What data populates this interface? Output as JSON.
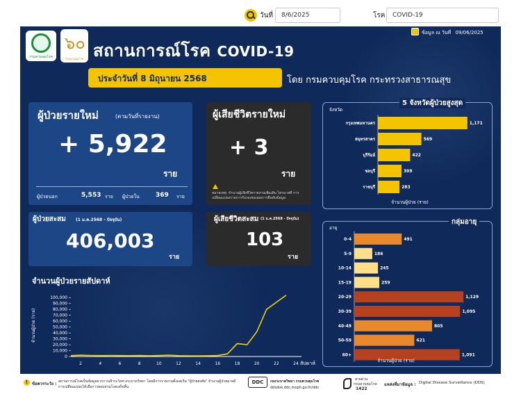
{
  "filters": {
    "date_label": "วันที่",
    "date_value": "8/6/2025",
    "disease_label": "โรค",
    "disease_value": "COVID-19"
  },
  "header": {
    "logo1_text": "กรมควบคุมโรค",
    "logo2_glyph": "๖๐",
    "logo2_text": "กรมควบคุมโรค",
    "title_th": "สถานการณ์โรค",
    "title_en": "COVID-19",
    "updated_label": "ข้อมูล ณ วันที่",
    "updated_date": "09/06/2025",
    "date_pill": "ประจำวันที่  8 มิถุนายน 2568",
    "by_text": "โดย กรมควบคุมโรค กระทรวงสาธารณสุข"
  },
  "new_cases": {
    "title": "ผู้ป่วยรายใหม่",
    "subtitle": "(ตามวันที่รายงาน)",
    "value": "+ 5,922",
    "unit": "ราย",
    "outpatient_label": "ผู้ป่วยนอก",
    "outpatient_value": "5,553",
    "inpatient_label": "ผู้ป่วยใน",
    "inpatient_value": "369",
    "row_unit": "ราย"
  },
  "new_deaths": {
    "title": "ผู้เสียชีวิตรายใหม่",
    "value": "+ 3",
    "unit": "ราย",
    "note": "หมายเหตุ: จำนวนผู้เสียชีวิตรายงานเพิ่มเติม ไตรมาสที่ การเปลี่ยนแปลงรายการรับรองของผลการยืนยันข้อมูล"
  },
  "cumulative": {
    "title": "ผู้ป่วยสะสม",
    "subtitle": "(1 ม.ค.2568 - ปัจจุบัน)",
    "value": "406,003",
    "unit": "ราย"
  },
  "cumulative_deaths": {
    "title": "ผู้เสียชีวิตสะสม",
    "subtitle": "(1 ม.ค.2568 - ปัจจุบัน)",
    "value": "103",
    "unit": "ราย"
  },
  "colors": {
    "bar_yellow": "#f5c400",
    "bar_light": "#ffe08a",
    "bar_orange": "#e8892b",
    "bar_red": "#b5411f",
    "line": "#f5d000"
  },
  "chart_data": [
    {
      "type": "line",
      "title": "จำนวนผู้ป่วยรายสัปดาห์",
      "xlabel": "สัปดาห์",
      "ylabel": "จำนวนผู้ป่วย (ราย)",
      "x": [
        1,
        2,
        3,
        4,
        5,
        6,
        7,
        8,
        9,
        10,
        11,
        12,
        13,
        14,
        15,
        16,
        17,
        18,
        19,
        20,
        21,
        22,
        23
      ],
      "x_ticks": [
        "2",
        "4",
        "6",
        "8",
        "10",
        "12",
        "14",
        "16",
        "18",
        "20",
        "22",
        "24"
      ],
      "y_ticks": [
        "0",
        "10,000",
        "20,000",
        "30,000",
        "40,000",
        "50,000",
        "60,000",
        "70,000",
        "80,000",
        "90,000",
        "100,000"
      ],
      "ylim": [
        0,
        105000
      ],
      "xlim": [
        1,
        24
      ],
      "series": [
        {
          "values": [
            1500,
            2200,
            1800,
            1500,
            1600,
            1500,
            1400,
            1700,
            1300,
            1600,
            2300,
            1400,
            1200,
            1100,
            1300,
            1700,
            4500,
            22000,
            20000,
            42000,
            80000,
            92000,
            104000
          ]
        }
      ]
    },
    {
      "type": "bar",
      "title": "5 จังหวัดผู้ป่วยสูงสุด",
      "ylabel": "จังหวัด",
      "xlabel": "จำนวนผู้ป่วย (ราย)",
      "categories": [
        "กรุงเทพมหานคร",
        "สมุทรสาคร",
        "บุรีรัมย์",
        "ชลบุรี",
        "ราชบุรี"
      ],
      "values": [
        1171,
        569,
        422,
        309,
        283
      ],
      "labels": [
        "1,171",
        "569",
        "422",
        "309",
        "283"
      ],
      "xlim": [
        0,
        1200
      ]
    },
    {
      "type": "bar",
      "title": "กลุ่มอายุ",
      "ylabel": "อายุ",
      "xlabel": "จำนวนผู้ป่วย (ราย)",
      "categories": [
        "0-4",
        "5-9",
        "10-14",
        "15-19",
        "20-29",
        "30-39",
        "40-49",
        "50-59",
        "60+"
      ],
      "values": [
        491,
        186,
        245,
        259,
        1129,
        1095,
        805,
        621,
        1091
      ],
      "labels": [
        "491",
        "186",
        "245",
        "259",
        "1,129",
        "1,095",
        "805",
        "621",
        "1,091"
      ],
      "xlim": [
        0,
        1150
      ]
    }
  ],
  "footer": {
    "alert_label": "ข้อควรระวัง :",
    "alert_text": "สถานการณ์โรคเป็นข้อมูลจากการเฝ้าระวังทางระบาดวิทยา โดยมีการรายงานตั้งแต่เริ่ม \"ผู้ป่วยสงสัย\" จำนวนผู้ป่วยอาจมีการเปลี่ยนแปลงได้เมื่อการสอบสวนโรคเสร็จสิ้น",
    "ddc_label": "DDC",
    "ddc_text": "กองระบาดวิทยา กรมควบคุมโรค",
    "ddc_url": "ddsdoe.ddc.moph.go.th/dds",
    "hotline_label": "สายด่วน",
    "hotline_sub": "กรมควบคุมโรค",
    "hotline_number": "1422",
    "source_label": "แหล่งที่มาข้อมูล :",
    "source_text": "Digital Disease Surveillance (DDS)"
  }
}
